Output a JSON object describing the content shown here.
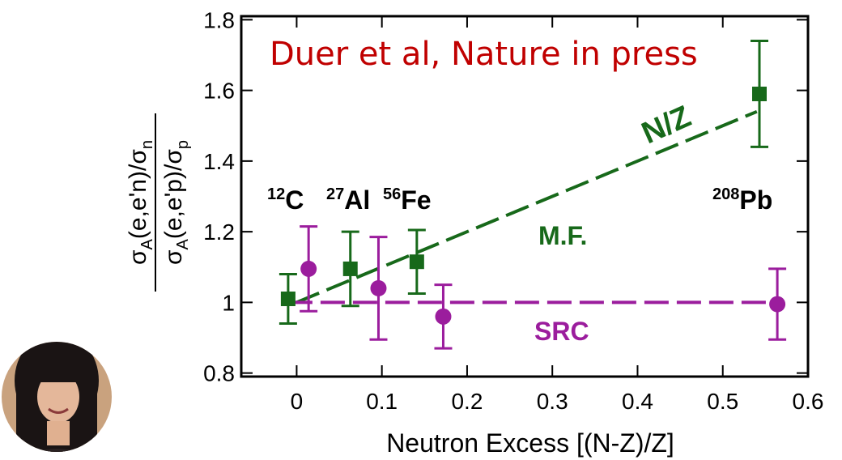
{
  "chart_data": {
    "type": "scatter",
    "title": "Duer et al, Nature in press",
    "x_label": "Neutron Excess [(N-Z)/Z]",
    "y_label": {
      "numerator": {
        "main": "σ",
        "sub": "A",
        "rest": "(e,e'n)/σ",
        "sub2": "n"
      },
      "denominator": {
        "main": "σ",
        "sub": "A",
        "rest": "(e,e'p)/σ",
        "sub2": "p"
      }
    },
    "xlim": [
      -0.065,
      0.6
    ],
    "ylim": [
      0.79,
      1.81
    ],
    "xticks": [
      0,
      0.1,
      0.2,
      0.3,
      0.4,
      0.5,
      0.6
    ],
    "yticks": [
      0.8,
      1,
      1.2,
      1.4,
      1.6,
      1.8
    ],
    "series": [
      {
        "name": "M.F.",
        "color": "#17691a",
        "marker": "square",
        "x": [
          -0.01,
          0.063,
          0.141,
          0.543
        ],
        "values": [
          1.01,
          1.095,
          1.115,
          1.59
        ],
        "errors": [
          0.07,
          0.105,
          0.09,
          0.15
        ]
      },
      {
        "name": "SRC",
        "color": "#9b1d9d",
        "marker": "circle",
        "x": [
          0.014,
          0.096,
          0.172,
          0.564
        ],
        "values": [
          1.095,
          1.04,
          0.96,
          0.995
        ],
        "errors": [
          0.12,
          0.145,
          0.09,
          0.1
        ]
      }
    ],
    "lines": [
      {
        "label": "N/Z",
        "color": "#17691a",
        "x": [
          0,
          0.54
        ],
        "values": [
          1,
          1.54
        ]
      },
      {
        "color": "#9b1d9d",
        "x": [
          -0.01,
          0.565
        ],
        "values": [
          1,
          1
        ]
      }
    ],
    "nuclei": [
      {
        "mass": "12",
        "symbol": "C"
      },
      {
        "mass": "27",
        "symbol": "Al"
      },
      {
        "mass": "56",
        "symbol": "Fe"
      },
      {
        "mass": "208",
        "symbol": "Pb"
      }
    ]
  }
}
